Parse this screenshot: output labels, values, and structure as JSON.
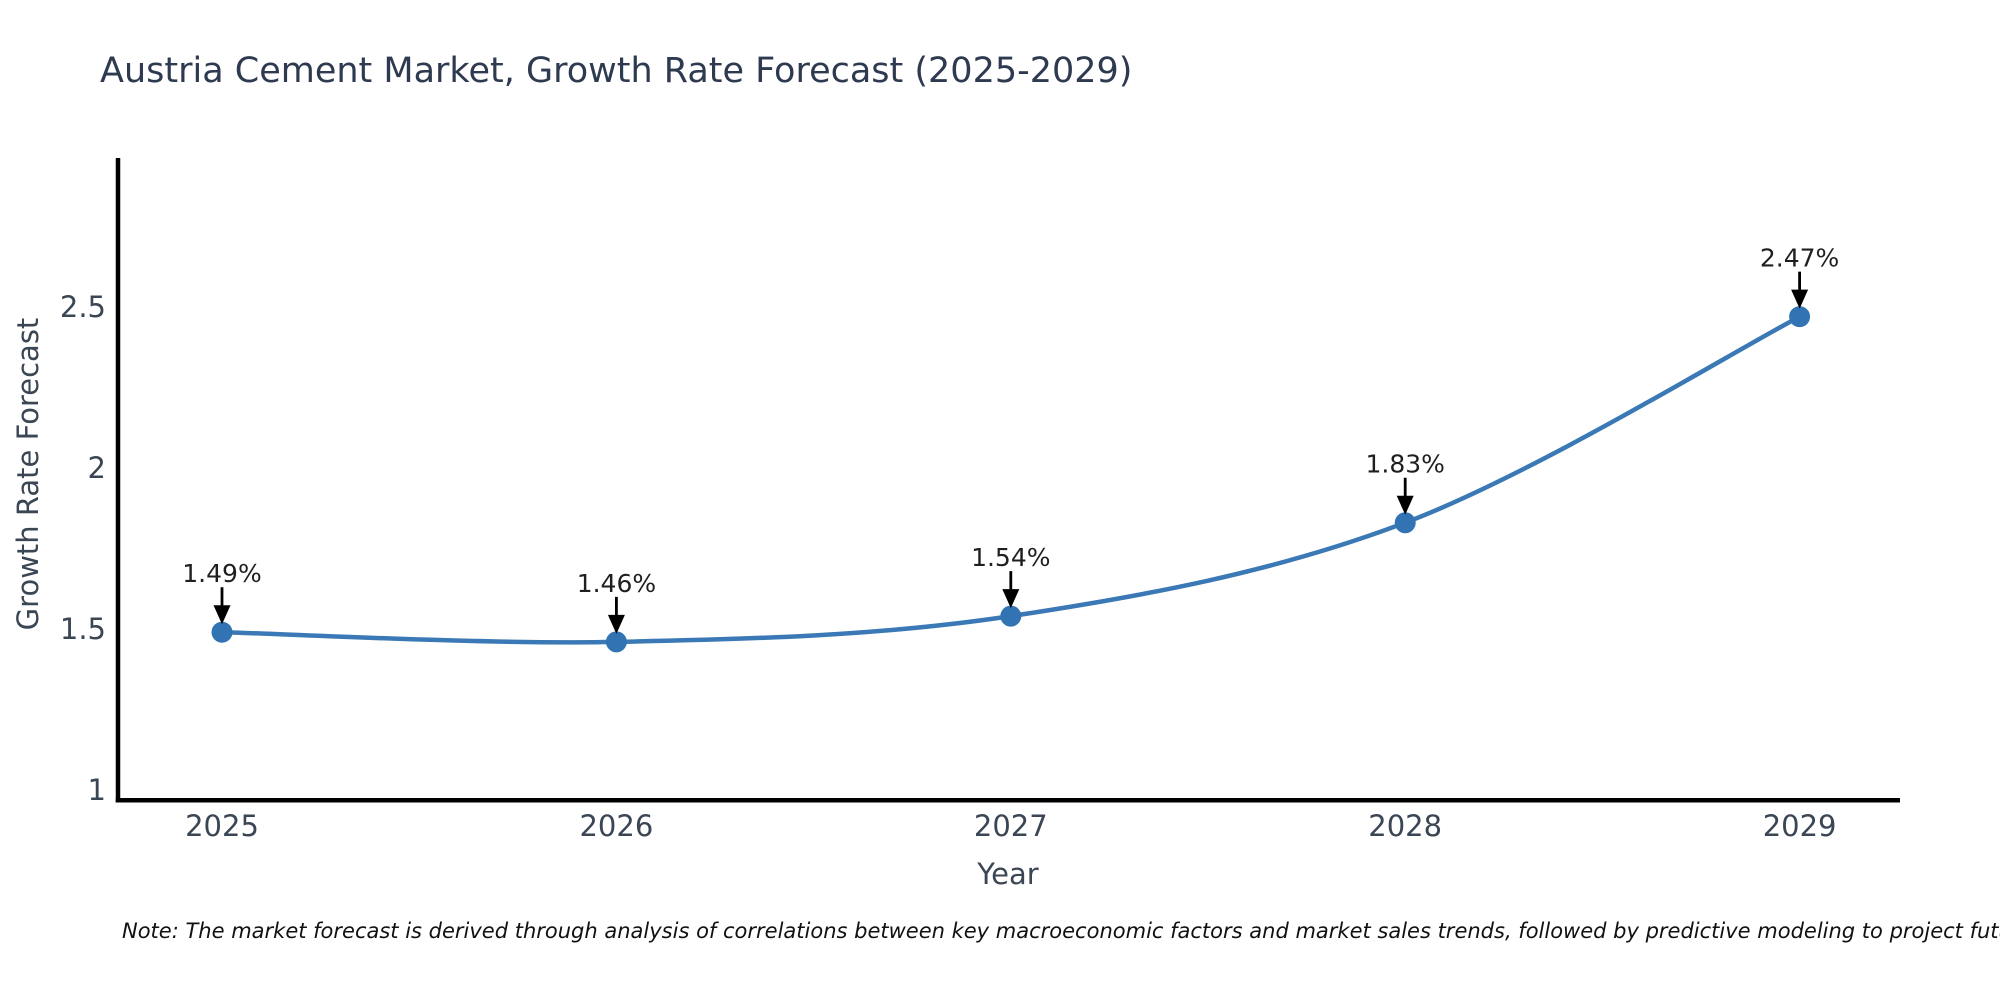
{
  "title": "Austria Cement Market, Growth Rate Forecast (2025-2029)",
  "note": "Note: The market forecast is derived through analysis of correlations between key macroeconomic factors and market sales trends, followed by predictive modeling to project future sales",
  "colors": {
    "background": "#ffffff",
    "line": "#3a79b5",
    "marker": "#3273b3",
    "spine": "#000000",
    "arrow": "#000000",
    "title_text": "#2e3a50",
    "axis_text": "#3b4654",
    "annotation_text": "#1f1f1f",
    "note_text": "#111111"
  },
  "chart_data": {
    "type": "line",
    "title": "Austria Cement Market, Growth Rate Forecast (2025-2029)",
    "xlabel": "Year",
    "ylabel": "Growth Rate Forecast",
    "x": [
      2025,
      2026,
      2027,
      2028,
      2029
    ],
    "values": [
      1.49,
      1.46,
      1.54,
      1.83,
      2.47
    ],
    "point_labels": [
      "1.49%",
      "1.46%",
      "1.54%",
      "1.83%",
      "2.47%"
    ],
    "xticks": [
      "2025",
      "2026",
      "2027",
      "2028",
      "2029"
    ],
    "yticks": [
      1,
      1.5,
      2,
      2.5
    ],
    "ylim": [
      0.96,
      3.0
    ],
    "grid": false,
    "legend": null,
    "marker_style": "circle",
    "annotation_style": "down-arrow-above-point",
    "smooth": true
  }
}
